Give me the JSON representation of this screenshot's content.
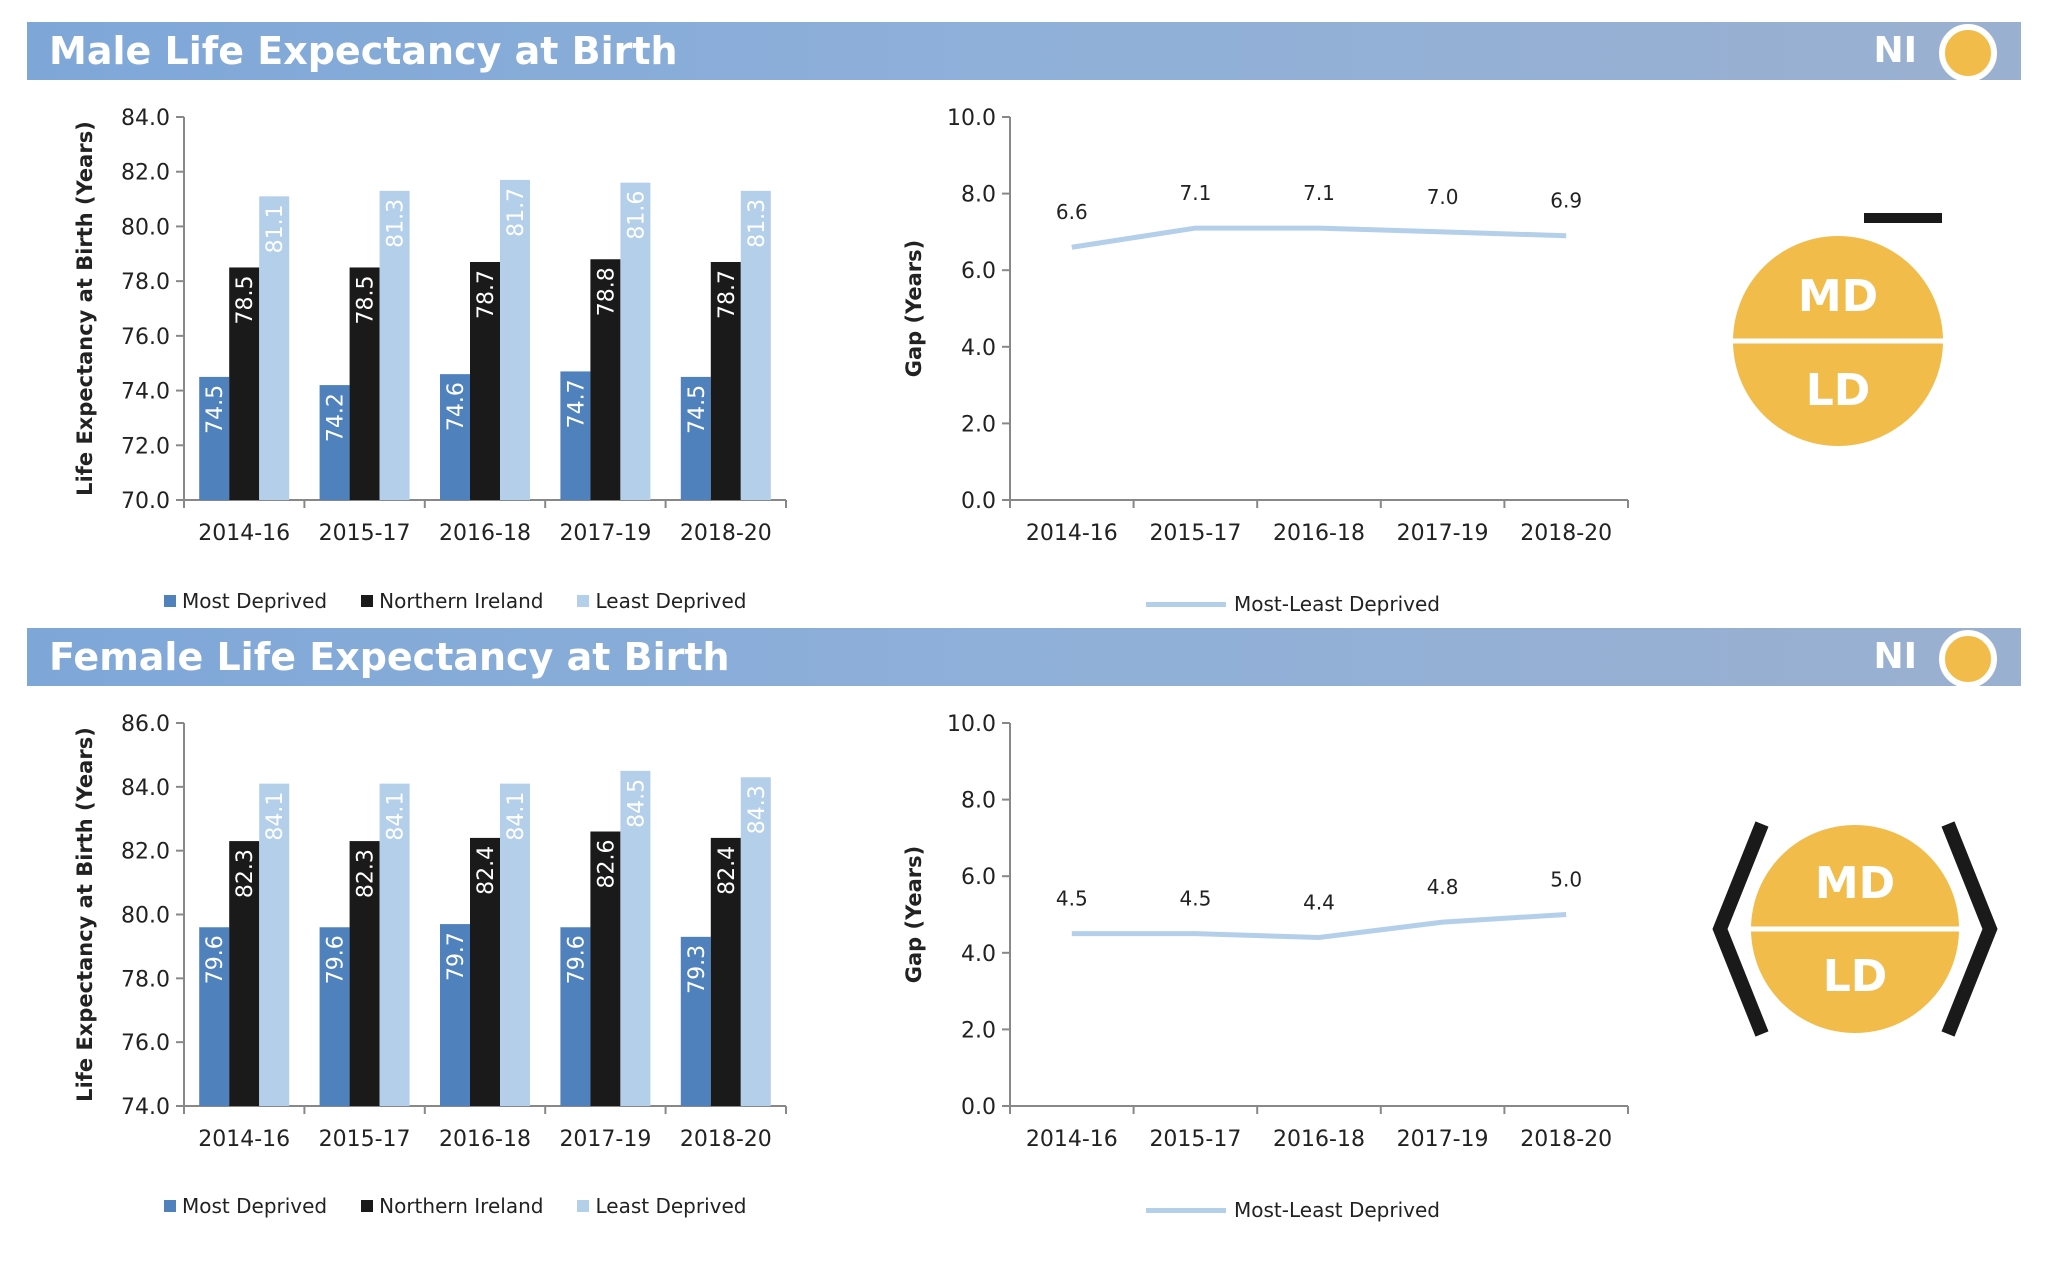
{
  "colors": {
    "most_deprived": "#4f81bd",
    "northern_ireland": "#1a1a1a",
    "least_deprived": "#b4cfea",
    "gap_line": "#b4cfea",
    "badge": "#f2bc4b"
  },
  "male": {
    "title": "Male Life Expectancy at Birth",
    "ni_label": "NI",
    "badge": {
      "top": "MD",
      "bottom": "LD",
      "indicator": "bar"
    }
  },
  "female": {
    "title": "Female Life Expectancy at Birth",
    "ni_label": "NI",
    "badge": {
      "top": "MD",
      "bottom": "LD",
      "indicator": "chevrons"
    }
  },
  "legend": {
    "most_deprived": "Most Deprived",
    "northern_ireland": "Northern Ireland",
    "least_deprived": "Least Deprived",
    "gap": "Most-Least Deprived"
  },
  "chart_data": [
    {
      "id": "male-bar",
      "type": "bar",
      "categories": [
        "2014-16",
        "2015-17",
        "2016-18",
        "2017-19",
        "2018-20"
      ],
      "series": [
        {
          "name": "Most Deprived",
          "values": [
            74.5,
            74.2,
            74.6,
            74.7,
            74.5
          ]
        },
        {
          "name": "Northern Ireland",
          "values": [
            78.5,
            78.5,
            78.7,
            78.8,
            78.7
          ]
        },
        {
          "name": "Least Deprived",
          "values": [
            81.1,
            81.3,
            81.7,
            81.6,
            81.3
          ]
        }
      ],
      "ylabel": "Life Expectancy at Birth (Years)",
      "ylim": [
        70,
        84
      ],
      "yticks": [
        "70.0",
        "72.0",
        "74.0",
        "76.0",
        "78.0",
        "80.0",
        "82.0",
        "84.0"
      ],
      "legend": "bottom"
    },
    {
      "id": "male-gap",
      "type": "line",
      "categories": [
        "2014-16",
        "2015-17",
        "2016-18",
        "2017-19",
        "2018-20"
      ],
      "series": [
        {
          "name": "Most-Least Deprived",
          "values": [
            6.6,
            7.1,
            7.1,
            7.0,
            6.9
          ]
        }
      ],
      "ylabel": "Gap (Years)",
      "ylim": [
        0,
        10
      ],
      "yticks": [
        "0.0",
        "2.0",
        "4.0",
        "6.0",
        "8.0",
        "10.0"
      ],
      "legend": "bottom"
    },
    {
      "id": "female-bar",
      "type": "bar",
      "categories": [
        "2014-16",
        "2015-17",
        "2016-18",
        "2017-19",
        "2018-20"
      ],
      "series": [
        {
          "name": "Most Deprived",
          "values": [
            79.6,
            79.6,
            79.7,
            79.6,
            79.3
          ]
        },
        {
          "name": "Northern Ireland",
          "values": [
            82.3,
            82.3,
            82.4,
            82.6,
            82.4
          ]
        },
        {
          "name": "Least Deprived",
          "values": [
            84.1,
            84.1,
            84.1,
            84.5,
            84.3
          ]
        }
      ],
      "ylabel": "Life Expectancy at Birth (Years)",
      "ylim": [
        74,
        86
      ],
      "yticks": [
        "74.0",
        "76.0",
        "78.0",
        "80.0",
        "82.0",
        "84.0",
        "86.0"
      ],
      "legend": "bottom"
    },
    {
      "id": "female-gap",
      "type": "line",
      "categories": [
        "2014-16",
        "2015-17",
        "2016-18",
        "2017-19",
        "2018-20"
      ],
      "series": [
        {
          "name": "Most-Least Deprived",
          "values": [
            4.5,
            4.5,
            4.4,
            4.8,
            5.0
          ]
        }
      ],
      "ylabel": "Gap (Years)",
      "ylim": [
        0,
        10
      ],
      "yticks": [
        "0.0",
        "2.0",
        "4.0",
        "6.0",
        "8.0",
        "10.0"
      ],
      "legend": "bottom"
    }
  ]
}
